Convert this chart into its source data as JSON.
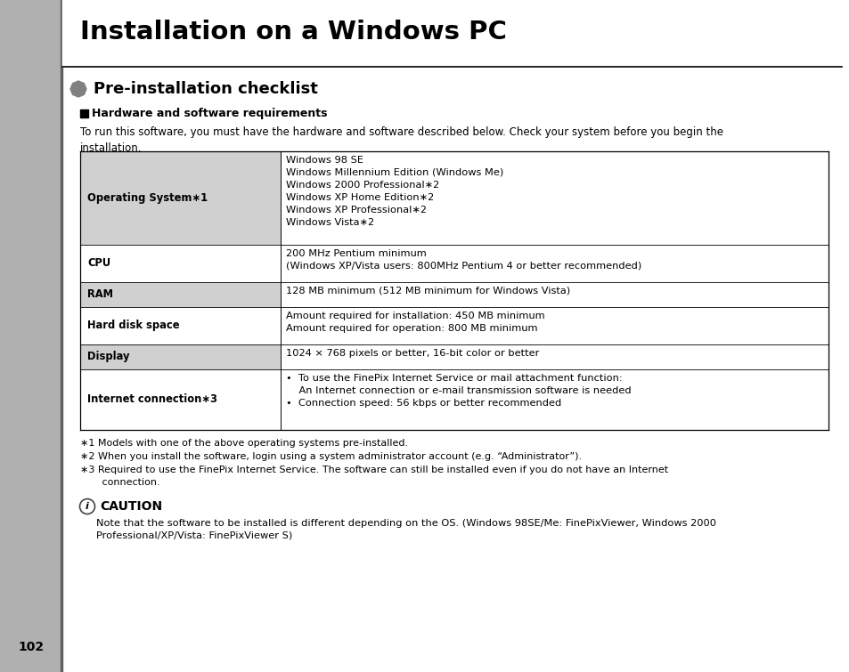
{
  "page_bg": "#ffffff",
  "left_bar_color": "#b0b0b0",
  "title": "Installation on a Windows PC",
  "section_title": "Pre-installation checklist",
  "hw_section": "Hardware and software requirements",
  "hw_intro": "To run this software, you must have the hardware and software described below. Check your system before you begin the\ninstallation.",
  "rows": [
    {
      "label": "Operating System∗1",
      "value": "Windows 98 SE\nWindows Millennium Edition (Windows Me)\nWindows 2000 Professional∗2\nWindows XP Home Edition∗2\nWindows XP Professional∗2\nWindows Vista∗2",
      "label_bg": "#d0d0d0",
      "value_bg": "#ffffff"
    },
    {
      "label": "CPU",
      "value": "200 MHz Pentium minimum\n(Windows XP/Vista users: 800MHz Pentium 4 or better recommended)",
      "label_bg": "#ffffff",
      "value_bg": "#ffffff"
    },
    {
      "label": "RAM",
      "value": "128 MB minimum (512 MB minimum for Windows Vista)",
      "label_bg": "#d0d0d0",
      "value_bg": "#ffffff"
    },
    {
      "label": "Hard disk space",
      "value": "Amount required for installation: 450 MB minimum\nAmount required for operation: 800 MB minimum",
      "label_bg": "#ffffff",
      "value_bg": "#ffffff"
    },
    {
      "label": "Display",
      "value": "1024 × 768 pixels or better, 16-bit color or better",
      "label_bg": "#d0d0d0",
      "value_bg": "#ffffff"
    },
    {
      "label": "Internet connection∗3",
      "value": "•  To use the FinePix Internet Service or mail attachment function:\n    An Internet connection or e-mail transmission software is needed\n•  Connection speed: 56 kbps or better recommended",
      "label_bg": "#ffffff",
      "value_bg": "#ffffff"
    }
  ],
  "footnotes": [
    "∗1 Models with one of the above operating systems pre-installed.",
    "∗2 When you install the software, login using a system administrator account (e.g. “Administrator”).",
    "∗3 Required to use the FinePix Internet Service. The software can still be installed even if you do not have an Internet\n       connection."
  ],
  "caution_title": "CAUTION",
  "caution_text": "Note that the software to be installed is different depending on the OS. (Windows 98SE/Me: FinePixViewer, Windows 2000\nProfessional/XP/Vista: FinePixViewer S)",
  "page_number": "102"
}
